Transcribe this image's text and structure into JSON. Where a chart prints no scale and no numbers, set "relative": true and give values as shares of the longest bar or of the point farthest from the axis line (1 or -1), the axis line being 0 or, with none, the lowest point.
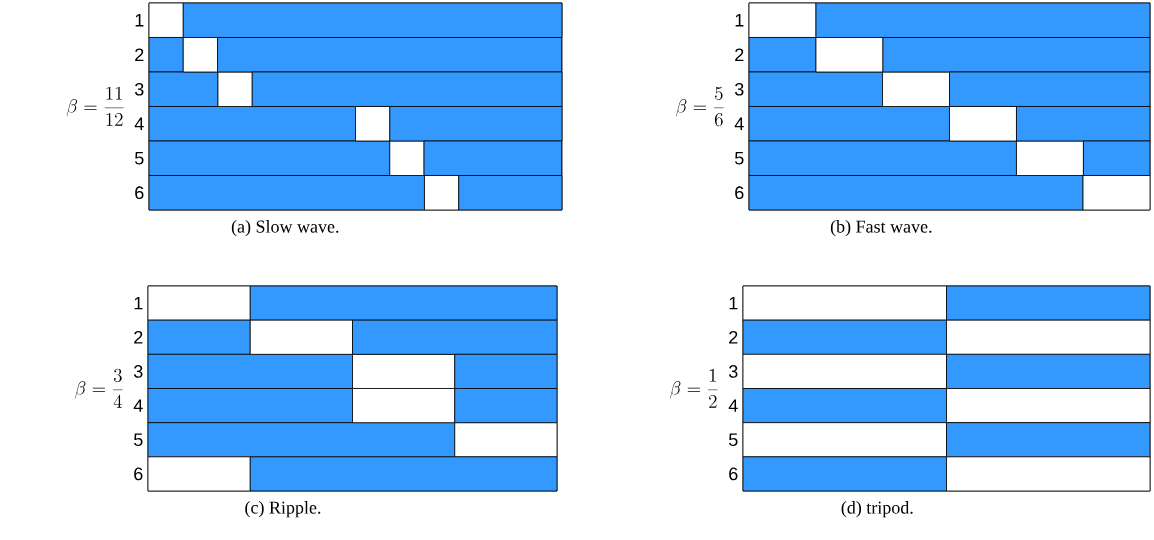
{
  "chart_data": [
    {
      "type": "bar",
      "orientation": "horizontal",
      "stacked": true,
      "relative": true,
      "title": "(a) Slow wave.",
      "ylabel": "\\beta = \\frac{11}{12}",
      "categories": [
        "1",
        "2",
        "3",
        "4",
        "5",
        "6"
      ],
      "series": [
        {
          "colors": [
            "#ffffff",
            "#3399ff",
            "#3399ff",
            "#3399ff",
            "#3399ff",
            "#3399ff"
          ],
          "values": [
            0.083,
            0.083,
            0.167,
            0.5,
            0.583,
            0.667
          ]
        },
        {
          "colors": [
            "#3399ff",
            "#ffffff",
            "#ffffff",
            "#ffffff",
            "#ffffff",
            "#ffffff"
          ],
          "values": [
            0.917,
            0.083,
            0.083,
            0.083,
            0.083,
            0.083
          ]
        },
        {
          "colors": [
            "#3399ff",
            "#3399ff",
            "#3399ff",
            "#3399ff",
            "#3399ff",
            "#3399ff"
          ],
          "values": [
            null,
            0.833,
            0.75,
            0.417,
            0.333,
            0.25
          ]
        }
      ]
    },
    {
      "type": "bar",
      "orientation": "horizontal",
      "stacked": true,
      "relative": true,
      "title": "(b) Fast wave.",
      "ylabel": "\\beta = \\frac{5}{6}",
      "categories": [
        "1",
        "2",
        "3",
        "4",
        "5",
        "6"
      ],
      "series": [
        {
          "colors": [
            "#ffffff",
            "#3399ff",
            "#3399ff",
            "#3399ff",
            "#3399ff",
            "#3399ff"
          ],
          "values": [
            0.167,
            0.167,
            0.333,
            0.5,
            0.667,
            0.833
          ]
        },
        {
          "colors": [
            "#3399ff",
            "#ffffff",
            "#ffffff",
            "#ffffff",
            "#ffffff",
            "#ffffff"
          ],
          "values": [
            0.833,
            0.167,
            0.167,
            0.167,
            0.167,
            0.167
          ]
        },
        {
          "colors": [
            "#3399ff",
            "#3399ff",
            "#3399ff",
            "#3399ff",
            "#3399ff",
            "#3399ff"
          ],
          "values": [
            null,
            0.666,
            0.5,
            0.333,
            0.166,
            null
          ]
        }
      ]
    },
    {
      "type": "bar",
      "orientation": "horizontal",
      "stacked": true,
      "relative": true,
      "title": "(c) Ripple.",
      "ylabel": "\\beta = \\frac{3}{4}",
      "categories": [
        "1",
        "2",
        "3",
        "4",
        "5",
        "6"
      ],
      "series": [
        {
          "colors": [
            "#ffffff",
            "#3399ff",
            "#3399ff",
            "#3399ff",
            "#3399ff",
            "#ffffff"
          ],
          "values": [
            0.25,
            0.25,
            0.5,
            0.5,
            0.75,
            0.25
          ]
        },
        {
          "colors": [
            "#3399ff",
            "#ffffff",
            "#ffffff",
            "#ffffff",
            "#ffffff",
            "#3399ff"
          ],
          "values": [
            0.75,
            0.25,
            0.25,
            0.25,
            0.25,
            0.75
          ]
        },
        {
          "colors": [
            "#3399ff",
            "#3399ff",
            "#3399ff",
            "#3399ff",
            "#3399ff",
            "#3399ff"
          ],
          "values": [
            null,
            0.5,
            0.25,
            0.25,
            null,
            null
          ]
        }
      ]
    },
    {
      "type": "bar",
      "orientation": "horizontal",
      "stacked": true,
      "relative": true,
      "title": "(d) tripod.",
      "ylabel": "\\beta = \\frac{1}{2}",
      "categories": [
        "1",
        "2",
        "3",
        "4",
        "5",
        "6"
      ],
      "series": [
        {
          "colors": [
            "#ffffff",
            "#3399ff",
            "#ffffff",
            "#3399ff",
            "#ffffff",
            "#3399ff"
          ],
          "values": [
            0.5,
            0.5,
            0.5,
            0.5,
            0.5,
            0.5
          ]
        },
        {
          "colors": [
            "#3399ff",
            "#ffffff",
            "#3399ff",
            "#ffffff",
            "#3399ff",
            "#ffffff"
          ],
          "values": [
            0.5,
            0.5,
            0.5,
            0.5,
            0.5,
            0.5
          ]
        }
      ]
    }
  ]
}
